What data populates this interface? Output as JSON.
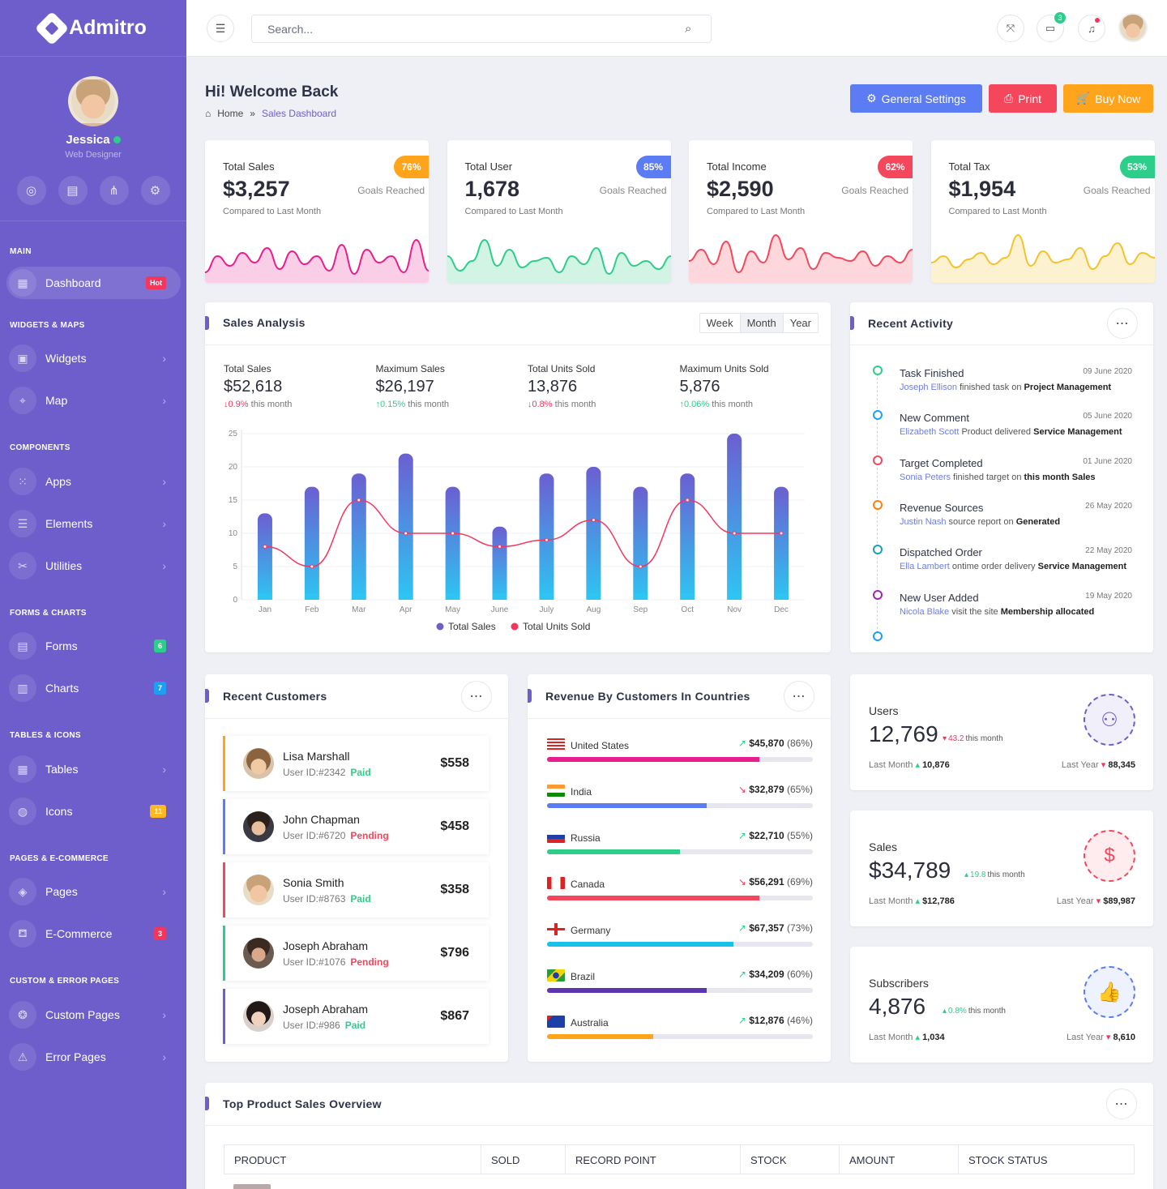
{
  "app": {
    "name": "Admitro"
  },
  "user": {
    "name": "Jessica",
    "role": "Web Designer"
  },
  "sidebar": {
    "sections": [
      "MAIN",
      "WIDGETS & MAPS",
      "COMPONENTS",
      "FORMS & CHARTS",
      "TABLES & ICONS",
      "PAGES & E-COMMERCE",
      "CUSTOM & ERROR PAGES"
    ],
    "items": [
      {
        "label": "Dashboard",
        "badge": "Hot"
      },
      {
        "label": "Widgets"
      },
      {
        "label": "Map"
      },
      {
        "label": "Apps"
      },
      {
        "label": "Elements"
      },
      {
        "label": "Utilities"
      },
      {
        "label": "Forms",
        "badge": "6"
      },
      {
        "label": "Charts",
        "badge": "7"
      },
      {
        "label": "Tables"
      },
      {
        "label": "Icons",
        "badge": "11"
      },
      {
        "label": "Pages"
      },
      {
        "label": "E-Commerce",
        "badge": "3"
      },
      {
        "label": "Custom Pages"
      },
      {
        "label": "Error Pages"
      }
    ]
  },
  "topbar": {
    "search_placeholder": "Search...",
    "messages_count": "3"
  },
  "page": {
    "title": "Hi! Welcome Back",
    "crumb_home": "Home",
    "crumb_sep": "»",
    "crumb_current": "Sales Dashboard"
  },
  "buttons": {
    "settings": "General Settings",
    "print": "Print",
    "buy": "Buy Now"
  },
  "colors": {
    "primary": "#6e5ecc",
    "blue": "#5b7cf2",
    "red": "#f5475c",
    "orange": "#ffa41b",
    "green": "#2dce89"
  },
  "stats": [
    {
      "label": "Total Sales",
      "value": "$3,257",
      "pct": "76%",
      "goal": "Goals Reached",
      "compare": "Compared to Last Month",
      "color": "#e91e8c"
    },
    {
      "label": "Total User",
      "value": "1,678",
      "pct": "85%",
      "goal": "Goals Reached",
      "compare": "Compared to Last Month",
      "color": "#2dce89"
    },
    {
      "label": "Total Income",
      "value": "$2,590",
      "pct": "62%",
      "goal": "Goals Reached",
      "compare": "Compared to Last Month",
      "color": "#f5475c"
    },
    {
      "label": "Total Tax",
      "value": "$1,954",
      "pct": "53%",
      "goal": "Goals Reached",
      "compare": "Compared to Last Month",
      "color": "#f4c22b"
    }
  ],
  "sales_analysis": {
    "title": "Sales Analysis",
    "tabs": [
      "Week",
      "Month",
      "Year"
    ],
    "kpis": [
      {
        "label": "Total Sales",
        "value": "$52,618",
        "change": "0.9%",
        "dir": "down",
        "suffix": "this month"
      },
      {
        "label": "Maximum Sales",
        "value": "$26,197",
        "change": "0.15%",
        "dir": "up",
        "suffix": "this month"
      },
      {
        "label": "Total Units Sold",
        "value": "13,876",
        "change": "0.8%",
        "dir": "down",
        "suffix": "this month"
      },
      {
        "label": "Maximum Units Sold",
        "value": "5,876",
        "change": "0.06%",
        "dir": "up",
        "suffix": "this month"
      }
    ]
  },
  "chart_data": {
    "type": "bar",
    "categories": [
      "Jan",
      "Feb",
      "Mar",
      "Apr",
      "May",
      "June",
      "July",
      "Aug",
      "Sep",
      "Oct",
      "Nov",
      "Dec"
    ],
    "series": [
      {
        "name": "Total Sales",
        "type": "bar",
        "values": [
          13,
          17,
          19,
          22,
          17,
          11,
          19,
          20,
          17,
          19,
          25,
          17
        ]
      },
      {
        "name": "Total Units Sold",
        "type": "line",
        "values": [
          8,
          5,
          15,
          10,
          10,
          8,
          9,
          12,
          5,
          15,
          10,
          10
        ]
      }
    ],
    "ylim": [
      0,
      25
    ],
    "yticks": [
      0,
      5,
      10,
      15,
      20,
      25
    ],
    "legend": "bottom"
  },
  "activity": {
    "title": "Recent Activity",
    "items": [
      {
        "title": "Task Finished",
        "date": "09 June 2020",
        "who": "Joseph Ellison",
        "text": "finished task on",
        "bold": "Project Management",
        "color": "#2dce89"
      },
      {
        "title": "New Comment",
        "date": "05 June 2020",
        "who": "Elizabeth Scott",
        "text": "Product delivered",
        "bold": "Service Management",
        "color": "#1e9ff2"
      },
      {
        "title": "Target Completed",
        "date": "01 June 2020",
        "who": "Sonia Peters",
        "text": "finished target on",
        "bold": "this month Sales",
        "color": "#f5475c"
      },
      {
        "title": "Revenue Sources",
        "date": "26 May 2020",
        "who": "Justin Nash",
        "text": "source report on",
        "bold": "Generated",
        "color": "#ff7f0e"
      },
      {
        "title": "Dispatched Order",
        "date": "22 May 2020",
        "who": "Ella Lambert",
        "text": "ontime order delivery",
        "bold": "Service Management",
        "color": "#17a2b8"
      },
      {
        "title": "New User Added",
        "date": "19 May 2020",
        "who": "Nicola Blake",
        "text": "visit the site",
        "bold": "Membership allocated",
        "color": "#9c27b0"
      }
    ]
  },
  "customers": {
    "title": "Recent Customers",
    "items": [
      {
        "name": "Lisa Marshall",
        "id": "User ID:#2342",
        "status": "Paid",
        "amount": "$558",
        "color": "#ffa41b"
      },
      {
        "name": "John Chapman",
        "id": "User ID:#6720",
        "status": "Pending",
        "amount": "$458",
        "color": "#5b7cf2"
      },
      {
        "name": "Sonia Smith",
        "id": "User ID:#8763",
        "status": "Paid",
        "amount": "$358",
        "color": "#f5475c"
      },
      {
        "name": "Joseph Abraham",
        "id": "User ID:#1076",
        "status": "Pending",
        "amount": "$796",
        "color": "#2dce89"
      },
      {
        "name": "Joseph Abraham",
        "id": "User ID:#986",
        "status": "Paid",
        "amount": "$867",
        "color": "#6e5ecc"
      }
    ]
  },
  "countries": {
    "title": "Revenue By Customers In Countries",
    "items": [
      {
        "name": "United States",
        "value": "$45,870",
        "pct": "(86%)",
        "fill": 0.8,
        "trend": "up",
        "color": "#e91e8c"
      },
      {
        "name": "India",
        "value": "$32,879",
        "pct": "(65%)",
        "fill": 0.6,
        "trend": "down",
        "color": "#5b7cf2"
      },
      {
        "name": "Russia",
        "value": "$22,710",
        "pct": "(55%)",
        "fill": 0.5,
        "trend": "up",
        "color": "#2dce89"
      },
      {
        "name": "Canada",
        "value": "$56,291",
        "pct": "(69%)",
        "fill": 0.8,
        "trend": "down",
        "color": "#f5475c"
      },
      {
        "name": "Germany",
        "value": "$67,357",
        "pct": "(73%)",
        "fill": 0.7,
        "trend": "up",
        "color": "#17c1e8"
      },
      {
        "name": "Brazil",
        "value": "$34,209",
        "pct": "(60%)",
        "fill": 0.6,
        "trend": "up",
        "color": "#5e35b1"
      },
      {
        "name": "Australia",
        "value": "$12,876",
        "pct": "(46%)",
        "fill": 0.4,
        "trend": "up",
        "color": "#ffa41b"
      }
    ]
  },
  "minis": [
    {
      "label": "Users",
      "value": "12,769",
      "change": "43.2",
      "dir": "down",
      "suffix": "this month",
      "last_month_label": "Last Month",
      "last_month": "10,876",
      "last_year_label": "Last Year",
      "last_year": "88,345",
      "icon": "users-icon",
      "color": "#6e5ecc"
    },
    {
      "label": "Sales",
      "value": "$34,789",
      "change": "19.8",
      "dir": "up",
      "suffix": "this month",
      "last_month_label": "Last Month",
      "last_month": "$12,786",
      "last_year_label": "Last Year",
      "last_year": "$89,987",
      "icon": "dollar-icon",
      "color": "#f5475c"
    },
    {
      "label": "Subscribers",
      "value": "4,876",
      "change": "0.8%",
      "dir": "up",
      "suffix": "this month",
      "last_month_label": "Last Month",
      "last_month": "1,034",
      "last_year_label": "Last Year",
      "last_year": "8,610",
      "icon": "thumbs-up-icon",
      "color": "#5b7cf2"
    }
  ],
  "top_products": {
    "title": "Top Product Sales Overview",
    "columns": [
      "PRODUCT",
      "SOLD",
      "RECORD POINT",
      "STOCK",
      "AMOUNT",
      "STOCK STATUS"
    ]
  }
}
